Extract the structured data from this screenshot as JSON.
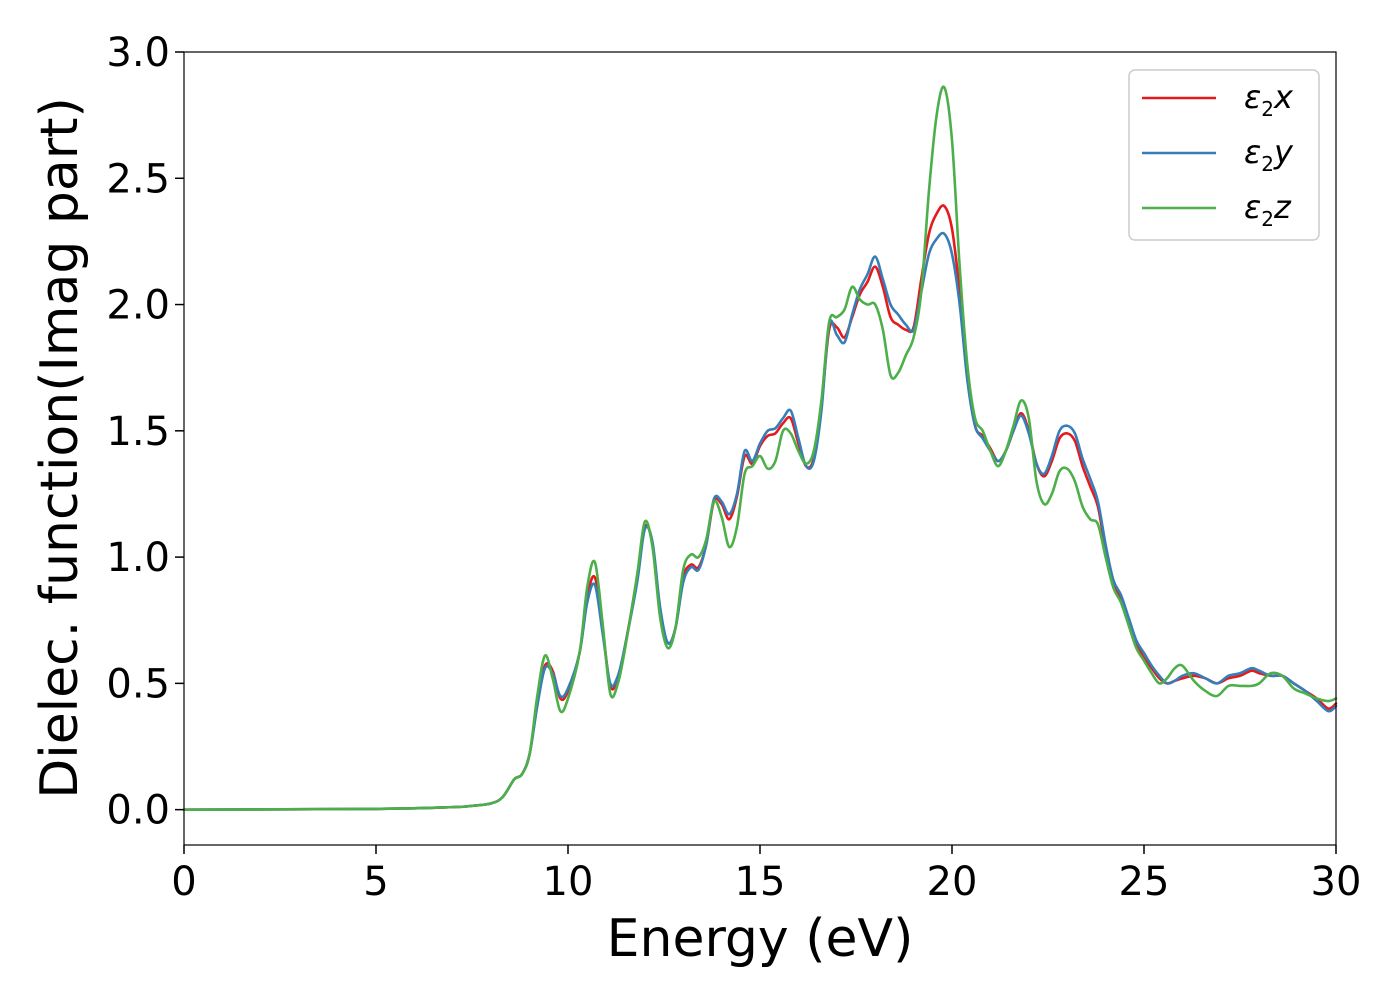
{
  "chart_data": {
    "type": "line",
    "xlabel": "Energy (eV)",
    "ylabel": "Dielec. function(Imag part)",
    "xlim": [
      0,
      30
    ],
    "ylim": [
      -0.14,
      3.0
    ],
    "xticks": [
      0,
      5,
      10,
      15,
      20,
      25,
      30
    ],
    "yticks": [
      0.0,
      0.5,
      1.0,
      1.5,
      2.0,
      2.5,
      3.0
    ],
    "xtick_labels": [
      "0",
      "5",
      "10",
      "15",
      "20",
      "25",
      "30"
    ],
    "ytick_labels": [
      "0.0",
      "0.5",
      "1.0",
      "1.5",
      "2.0",
      "2.5",
      "3.0"
    ],
    "grid": false,
    "legend_position": "top-right",
    "series": [
      {
        "name": "ε2x",
        "legend_base": "ε",
        "legend_sub": "2",
        "legend_var": "x",
        "color": "#e41a1c",
        "x": [
          0,
          5,
          7,
          7.5,
          8,
          8.3,
          8.6,
          8.8,
          9.0,
          9.2,
          9.4,
          9.6,
          9.8,
          10.0,
          10.3,
          10.5,
          10.7,
          10.9,
          11.1,
          11.3,
          11.5,
          11.8,
          12.0,
          12.2,
          12.4,
          12.6,
          12.8,
          13.0,
          13.2,
          13.4,
          13.6,
          13.8,
          14.0,
          14.2,
          14.4,
          14.6,
          14.8,
          15.0,
          15.2,
          15.4,
          15.6,
          15.8,
          16.0,
          16.2,
          16.4,
          16.6,
          16.8,
          17.0,
          17.2,
          17.4,
          17.6,
          17.8,
          18.0,
          18.2,
          18.4,
          18.6,
          18.8,
          19.0,
          19.2,
          19.4,
          19.6,
          19.8,
          20.0,
          20.2,
          20.4,
          20.6,
          20.8,
          21.0,
          21.2,
          21.4,
          21.6,
          21.8,
          22.0,
          22.2,
          22.4,
          22.6,
          22.8,
          23.0,
          23.2,
          23.4,
          23.6,
          23.8,
          24.0,
          24.2,
          24.4,
          24.6,
          24.8,
          25.0,
          25.2,
          25.4,
          25.6,
          25.8,
          26.0,
          26.3,
          26.6,
          26.9,
          27.2,
          27.5,
          27.8,
          28.0,
          28.3,
          28.6,
          28.9,
          29.2,
          29.5,
          29.8,
          30.0
        ],
        "values": [
          0.0,
          0.003,
          0.01,
          0.015,
          0.025,
          0.05,
          0.12,
          0.14,
          0.22,
          0.42,
          0.57,
          0.55,
          0.44,
          0.47,
          0.62,
          0.84,
          0.92,
          0.72,
          0.49,
          0.52,
          0.66,
          0.92,
          1.12,
          1.05,
          0.78,
          0.66,
          0.72,
          0.92,
          0.97,
          0.96,
          1.05,
          1.22,
          1.21,
          1.15,
          1.24,
          1.4,
          1.37,
          1.44,
          1.48,
          1.49,
          1.53,
          1.55,
          1.45,
          1.36,
          1.39,
          1.6,
          1.9,
          1.91,
          1.87,
          1.95,
          2.04,
          2.09,
          2.15,
          2.07,
          1.95,
          1.92,
          1.9,
          1.91,
          2.1,
          2.28,
          2.36,
          2.39,
          2.3,
          2.05,
          1.72,
          1.52,
          1.48,
          1.43,
          1.38,
          1.42,
          1.5,
          1.57,
          1.5,
          1.37,
          1.32,
          1.38,
          1.47,
          1.49,
          1.46,
          1.36,
          1.28,
          1.2,
          1.03,
          0.9,
          0.83,
          0.75,
          0.66,
          0.6,
          0.56,
          0.52,
          0.5,
          0.51,
          0.52,
          0.53,
          0.52,
          0.5,
          0.52,
          0.53,
          0.55,
          0.54,
          0.53,
          0.53,
          0.5,
          0.47,
          0.44,
          0.4,
          0.42
        ]
      },
      {
        "name": "ε2y",
        "legend_base": "ε",
        "legend_sub": "2",
        "legend_var": "y",
        "color": "#377eb8",
        "x": [
          0,
          5,
          7,
          7.5,
          8,
          8.3,
          8.6,
          8.8,
          9.0,
          9.2,
          9.4,
          9.6,
          9.8,
          10.0,
          10.3,
          10.5,
          10.7,
          10.9,
          11.1,
          11.3,
          11.5,
          11.8,
          12.0,
          12.2,
          12.4,
          12.6,
          12.8,
          13.0,
          13.2,
          13.4,
          13.6,
          13.8,
          14.0,
          14.2,
          14.4,
          14.6,
          14.8,
          15.0,
          15.2,
          15.4,
          15.6,
          15.8,
          16.0,
          16.2,
          16.4,
          16.6,
          16.8,
          17.0,
          17.2,
          17.4,
          17.6,
          17.8,
          18.0,
          18.2,
          18.4,
          18.6,
          18.8,
          19.0,
          19.2,
          19.4,
          19.6,
          19.8,
          20.0,
          20.2,
          20.4,
          20.6,
          20.8,
          21.0,
          21.2,
          21.4,
          21.6,
          21.8,
          22.0,
          22.2,
          22.4,
          22.6,
          22.8,
          23.0,
          23.2,
          23.4,
          23.6,
          23.8,
          24.0,
          24.2,
          24.4,
          24.6,
          24.8,
          25.0,
          25.2,
          25.4,
          25.6,
          25.8,
          26.0,
          26.3,
          26.6,
          26.9,
          27.2,
          27.5,
          27.8,
          28.0,
          28.3,
          28.6,
          28.9,
          29.2,
          29.5,
          29.8,
          30.0
        ],
        "values": [
          0.0,
          0.003,
          0.01,
          0.015,
          0.025,
          0.05,
          0.12,
          0.14,
          0.22,
          0.41,
          0.56,
          0.54,
          0.45,
          0.48,
          0.62,
          0.82,
          0.89,
          0.7,
          0.5,
          0.53,
          0.66,
          0.9,
          1.11,
          1.06,
          0.8,
          0.66,
          0.72,
          0.9,
          0.96,
          0.95,
          1.05,
          1.23,
          1.22,
          1.17,
          1.25,
          1.42,
          1.38,
          1.45,
          1.5,
          1.51,
          1.55,
          1.58,
          1.47,
          1.36,
          1.38,
          1.58,
          1.92,
          1.88,
          1.85,
          1.96,
          2.06,
          2.12,
          2.19,
          2.1,
          2.0,
          1.96,
          1.92,
          1.9,
          2.05,
          2.2,
          2.26,
          2.28,
          2.2,
          2.0,
          1.7,
          1.52,
          1.47,
          1.42,
          1.38,
          1.42,
          1.5,
          1.56,
          1.49,
          1.37,
          1.33,
          1.4,
          1.5,
          1.52,
          1.49,
          1.39,
          1.31,
          1.22,
          1.05,
          0.91,
          0.85,
          0.76,
          0.67,
          0.62,
          0.57,
          0.53,
          0.5,
          0.51,
          0.53,
          0.54,
          0.52,
          0.5,
          0.53,
          0.54,
          0.56,
          0.55,
          0.53,
          0.53,
          0.5,
          0.47,
          0.43,
          0.39,
          0.41
        ]
      },
      {
        "name": "ε2z",
        "legend_base": "ε",
        "legend_sub": "2",
        "legend_var": "z",
        "color": "#4daf4a",
        "x": [
          0,
          5,
          7,
          7.5,
          8,
          8.3,
          8.6,
          8.8,
          9.0,
          9.2,
          9.4,
          9.6,
          9.8,
          10.0,
          10.3,
          10.5,
          10.7,
          10.9,
          11.1,
          11.3,
          11.5,
          11.8,
          12.0,
          12.2,
          12.4,
          12.6,
          12.8,
          13.0,
          13.2,
          13.4,
          13.6,
          13.8,
          14.0,
          14.2,
          14.4,
          14.6,
          14.8,
          15.0,
          15.2,
          15.4,
          15.6,
          15.8,
          16.0,
          16.2,
          16.4,
          16.6,
          16.8,
          17.0,
          17.2,
          17.4,
          17.6,
          17.8,
          18.0,
          18.2,
          18.4,
          18.6,
          18.8,
          19.0,
          19.2,
          19.4,
          19.6,
          19.8,
          20.0,
          20.2,
          20.4,
          20.6,
          20.8,
          21.0,
          21.2,
          21.4,
          21.6,
          21.8,
          22.0,
          22.2,
          22.4,
          22.6,
          22.8,
          23.0,
          23.2,
          23.4,
          23.6,
          23.8,
          24.0,
          24.2,
          24.4,
          24.6,
          24.8,
          25.0,
          25.2,
          25.4,
          25.6,
          25.8,
          26.0,
          26.3,
          26.6,
          26.9,
          27.2,
          27.5,
          27.8,
          28.0,
          28.3,
          28.6,
          28.9,
          29.2,
          29.5,
          29.8,
          30.0
        ],
        "values": [
          0.0,
          0.003,
          0.01,
          0.015,
          0.025,
          0.05,
          0.12,
          0.14,
          0.22,
          0.45,
          0.61,
          0.52,
          0.39,
          0.44,
          0.62,
          0.88,
          0.98,
          0.74,
          0.46,
          0.5,
          0.65,
          0.93,
          1.14,
          1.04,
          0.76,
          0.64,
          0.72,
          0.95,
          1.01,
          1.0,
          1.07,
          1.22,
          1.16,
          1.04,
          1.12,
          1.33,
          1.36,
          1.4,
          1.35,
          1.38,
          1.5,
          1.49,
          1.42,
          1.37,
          1.42,
          1.62,
          1.93,
          1.95,
          1.98,
          2.07,
          2.02,
          2.0,
          2.0,
          1.9,
          1.72,
          1.73,
          1.8,
          1.87,
          2.05,
          2.45,
          2.75,
          2.86,
          2.65,
          2.15,
          1.76,
          1.55,
          1.5,
          1.42,
          1.36,
          1.42,
          1.52,
          1.62,
          1.55,
          1.3,
          1.21,
          1.25,
          1.34,
          1.35,
          1.3,
          1.2,
          1.15,
          1.13,
          1.0,
          0.88,
          0.82,
          0.73,
          0.64,
          0.59,
          0.54,
          0.5,
          0.52,
          0.56,
          0.57,
          0.51,
          0.47,
          0.45,
          0.49,
          0.49,
          0.49,
          0.5,
          0.54,
          0.53,
          0.48,
          0.46,
          0.44,
          0.43,
          0.44
        ]
      }
    ]
  }
}
